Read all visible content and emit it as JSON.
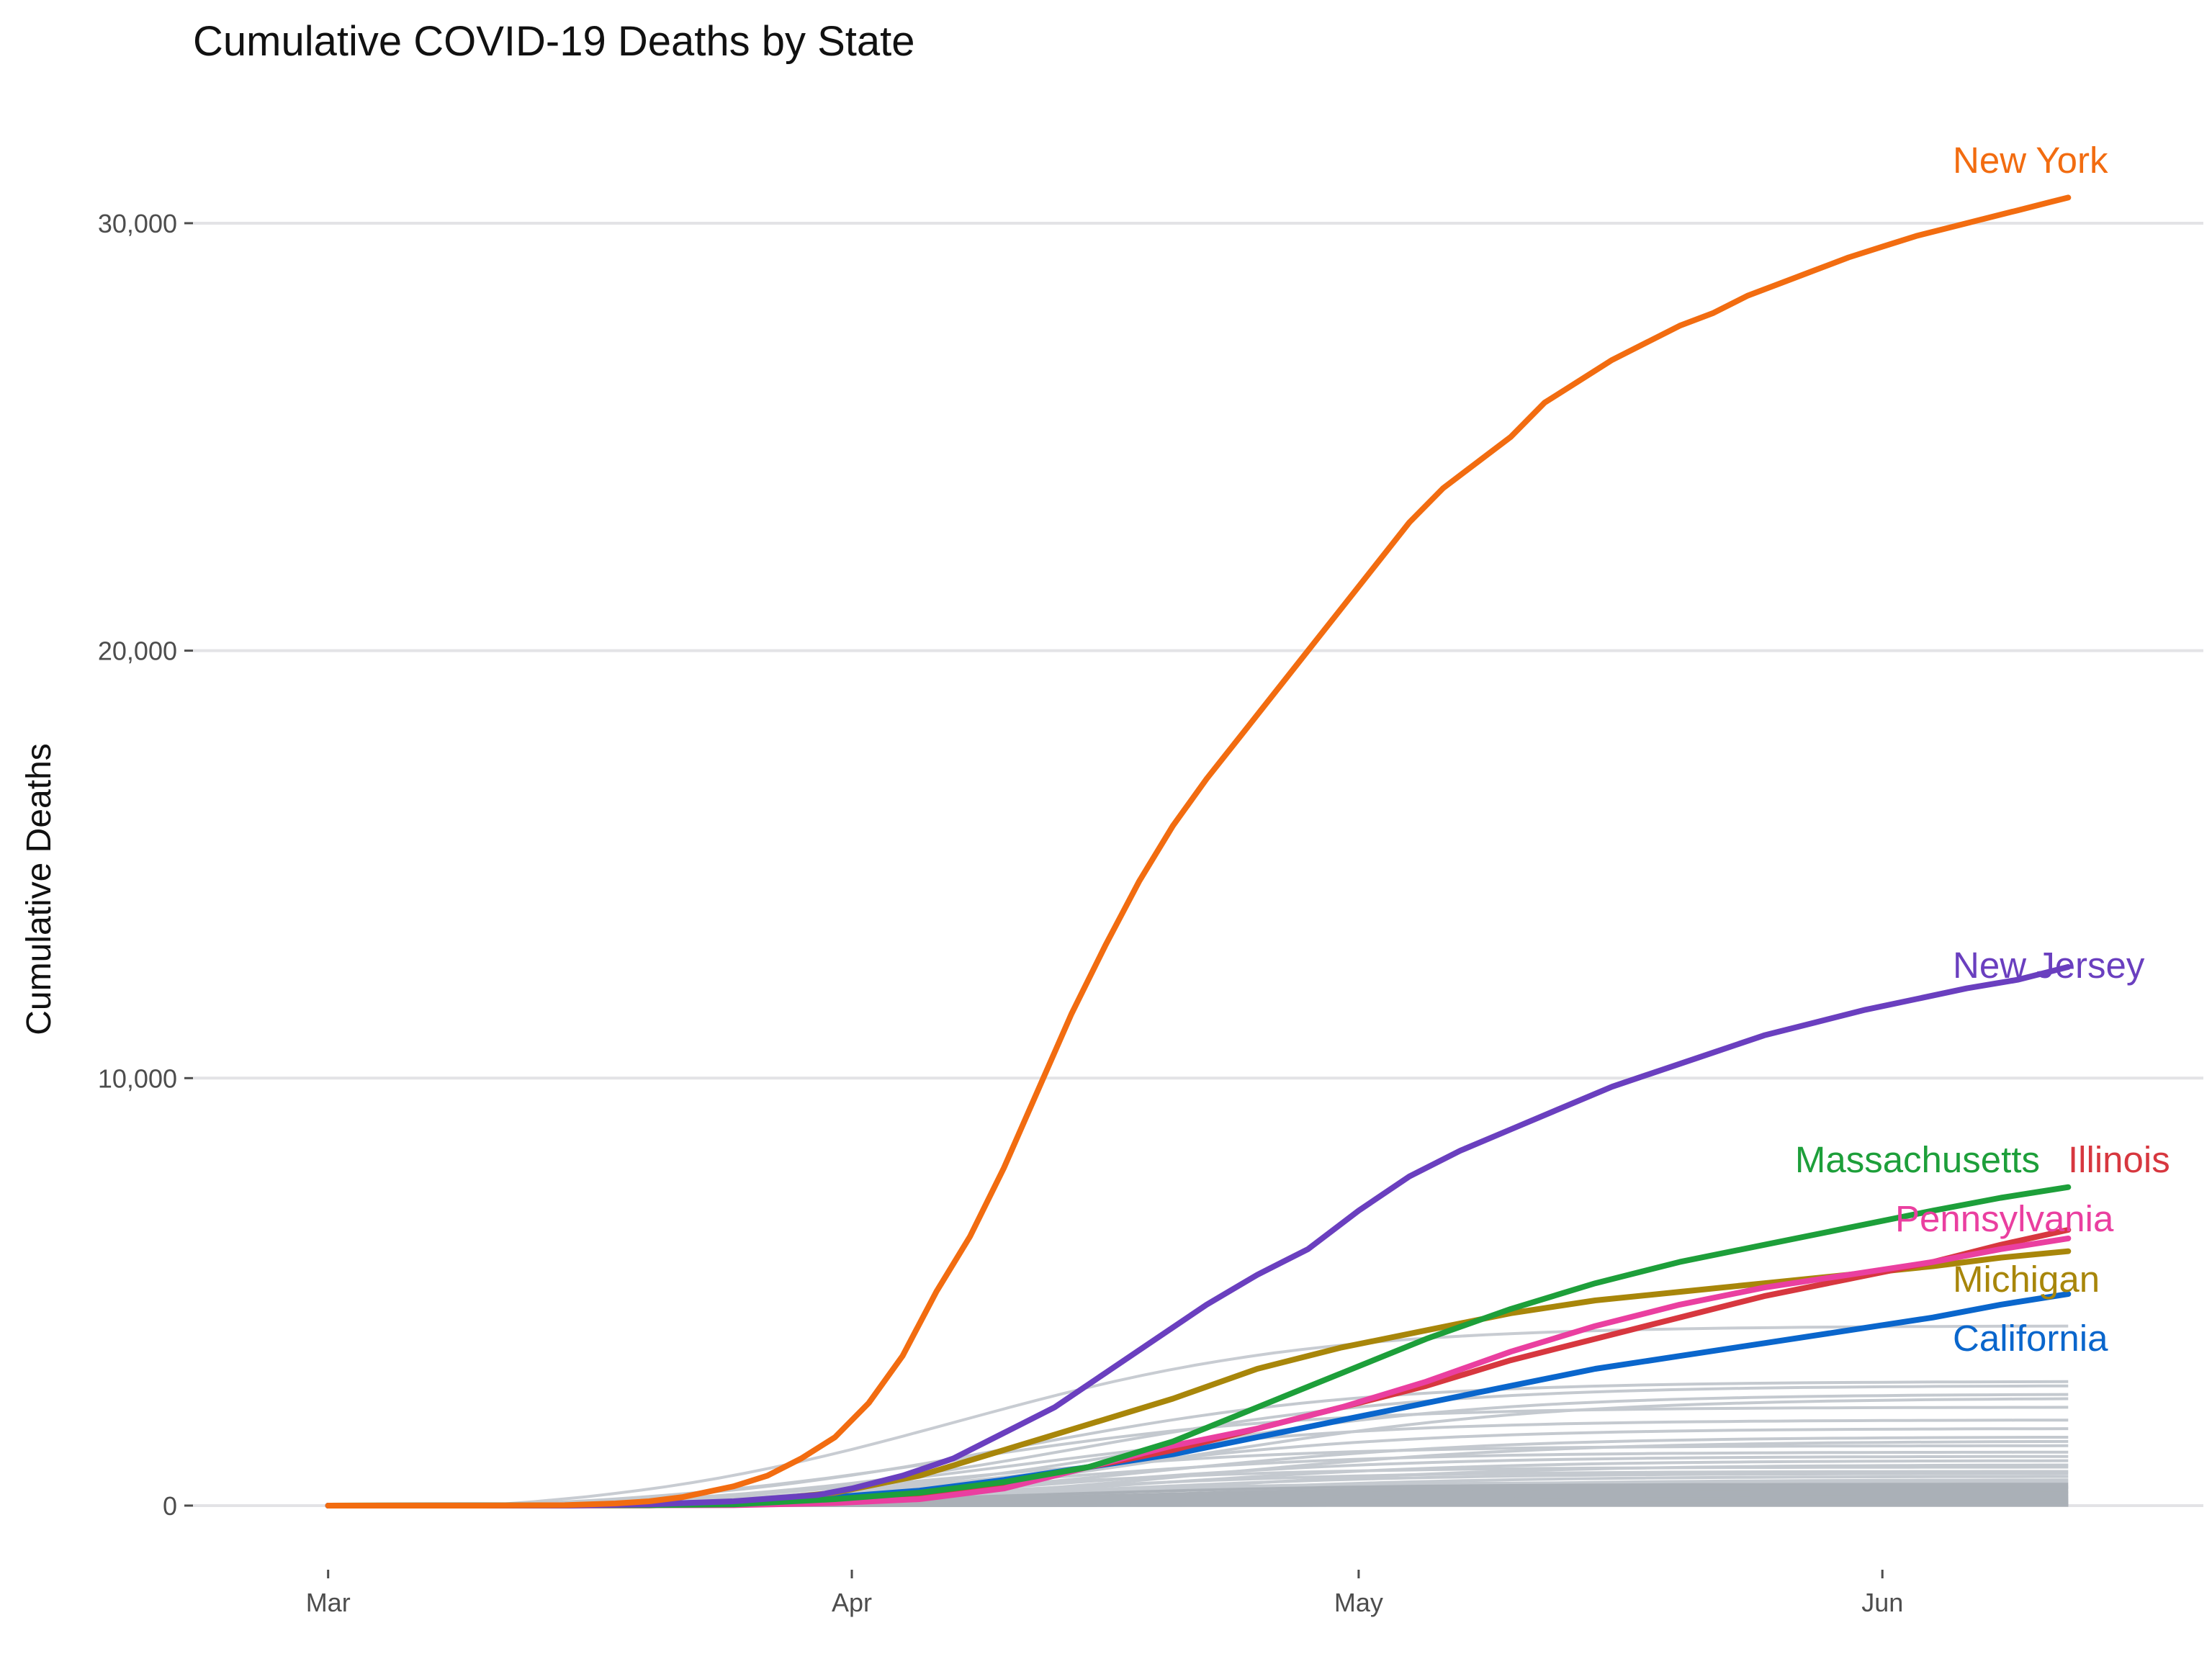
{
  "chart_data": {
    "type": "line",
    "title": "Cumulative COVID-19 Deaths by State",
    "xlabel": "",
    "ylabel": "Cumulative Deaths",
    "x_axis": {
      "type": "date",
      "range": [
        "2020-02-22",
        "2020-06-20"
      ],
      "ticks": [
        {
          "date": "2020-03-01",
          "label": "Mar"
        },
        {
          "date": "2020-04-01",
          "label": "Apr"
        },
        {
          "date": "2020-05-01",
          "label": "May"
        },
        {
          "date": "2020-06-01",
          "label": "Jun"
        }
      ]
    },
    "y_axis": {
      "range": [
        -1500,
        33200
      ],
      "ticks": [
        {
          "value": 0,
          "label": "0"
        },
        {
          "value": 10000,
          "label": "10,000"
        },
        {
          "value": 20000,
          "label": "20,000"
        },
        {
          "value": 30000,
          "label": "30,000"
        }
      ]
    },
    "grid": true,
    "legend": "none (direct labels at line ends)",
    "highlighted_series": [
      {
        "name": "New York",
        "color": "#f26c10",
        "points": [
          [
            "2020-03-01",
            0
          ],
          [
            "2020-03-10",
            0
          ],
          [
            "2020-03-15",
            10
          ],
          [
            "2020-03-18",
            50
          ],
          [
            "2020-03-20",
            100
          ],
          [
            "2020-03-22",
            200
          ],
          [
            "2020-03-25",
            450
          ],
          [
            "2020-03-27",
            700
          ],
          [
            "2020-03-29",
            1100
          ],
          [
            "2020-03-31",
            1600
          ],
          [
            "2020-04-02",
            2400
          ],
          [
            "2020-04-04",
            3500
          ],
          [
            "2020-04-06",
            5000
          ],
          [
            "2020-04-08",
            6300
          ],
          [
            "2020-04-10",
            7900
          ],
          [
            "2020-04-12",
            9700
          ],
          [
            "2020-04-14",
            11500
          ],
          [
            "2020-04-16",
            13100
          ],
          [
            "2020-04-18",
            14600
          ],
          [
            "2020-04-20",
            15900
          ],
          [
            "2020-04-22",
            17000
          ],
          [
            "2020-04-24",
            18000
          ],
          [
            "2020-04-26",
            19000
          ],
          [
            "2020-04-28",
            20000
          ],
          [
            "2020-04-30",
            21000
          ],
          [
            "2020-05-02",
            22000
          ],
          [
            "2020-05-04",
            23000
          ],
          [
            "2020-05-06",
            23800
          ],
          [
            "2020-05-08",
            24400
          ],
          [
            "2020-05-10",
            25000
          ],
          [
            "2020-05-12",
            25800
          ],
          [
            "2020-05-14",
            26300
          ],
          [
            "2020-05-16",
            26800
          ],
          [
            "2020-05-18",
            27200
          ],
          [
            "2020-05-20",
            27600
          ],
          [
            "2020-05-22",
            27900
          ],
          [
            "2020-05-24",
            28300
          ],
          [
            "2020-05-26",
            28600
          ],
          [
            "2020-05-28",
            28900
          ],
          [
            "2020-05-30",
            29200
          ],
          [
            "2020-06-01",
            29450
          ],
          [
            "2020-06-03",
            29700
          ],
          [
            "2020-06-05",
            29900
          ],
          [
            "2020-06-07",
            30100
          ],
          [
            "2020-06-09",
            30300
          ],
          [
            "2020-06-11",
            30500
          ],
          [
            "2020-06-12",
            30600
          ]
        ]
      },
      {
        "name": "New Jersey",
        "color": "#6a3fbf",
        "points": [
          [
            "2020-03-01",
            0
          ],
          [
            "2020-03-15",
            0
          ],
          [
            "2020-03-20",
            30
          ],
          [
            "2020-03-25",
            100
          ],
          [
            "2020-03-30",
            250
          ],
          [
            "2020-04-01",
            400
          ],
          [
            "2020-04-04",
            700
          ],
          [
            "2020-04-07",
            1100
          ],
          [
            "2020-04-10",
            1700
          ],
          [
            "2020-04-13",
            2300
          ],
          [
            "2020-04-16",
            3100
          ],
          [
            "2020-04-19",
            3900
          ],
          [
            "2020-04-22",
            4700
          ],
          [
            "2020-04-25",
            5400
          ],
          [
            "2020-04-28",
            6000
          ],
          [
            "2020-05-01",
            6900
          ],
          [
            "2020-05-04",
            7700
          ],
          [
            "2020-05-07",
            8300
          ],
          [
            "2020-05-10",
            8800
          ],
          [
            "2020-05-13",
            9300
          ],
          [
            "2020-05-16",
            9800
          ],
          [
            "2020-05-19",
            10200
          ],
          [
            "2020-05-22",
            10600
          ],
          [
            "2020-05-25",
            11000
          ],
          [
            "2020-05-28",
            11300
          ],
          [
            "2020-05-31",
            11600
          ],
          [
            "2020-06-03",
            11850
          ],
          [
            "2020-06-06",
            12100
          ],
          [
            "2020-06-09",
            12300
          ],
          [
            "2020-06-12",
            12600
          ]
        ]
      },
      {
        "name": "Massachusetts",
        "color": "#1d9f3a",
        "points": [
          [
            "2020-03-01",
            0
          ],
          [
            "2020-03-20",
            10
          ],
          [
            "2020-03-25",
            30
          ],
          [
            "2020-03-31",
            150
          ],
          [
            "2020-04-05",
            300
          ],
          [
            "2020-04-10",
            550
          ],
          [
            "2020-04-15",
            900
          ],
          [
            "2020-04-20",
            1500
          ],
          [
            "2020-04-25",
            2300
          ],
          [
            "2020-04-30",
            3100
          ],
          [
            "2020-05-05",
            3900
          ],
          [
            "2020-05-10",
            4600
          ],
          [
            "2020-05-15",
            5200
          ],
          [
            "2020-05-20",
            5700
          ],
          [
            "2020-05-25",
            6100
          ],
          [
            "2020-05-30",
            6500
          ],
          [
            "2020-06-04",
            6900
          ],
          [
            "2020-06-08",
            7200
          ],
          [
            "2020-06-12",
            7450
          ]
        ]
      },
      {
        "name": "Illinois",
        "color": "#d7373f",
        "points": [
          [
            "2020-03-01",
            0
          ],
          [
            "2020-03-20",
            5
          ],
          [
            "2020-03-31",
            100
          ],
          [
            "2020-04-05",
            250
          ],
          [
            "2020-04-10",
            500
          ],
          [
            "2020-04-15",
            900
          ],
          [
            "2020-04-20",
            1300
          ],
          [
            "2020-04-25",
            1800
          ],
          [
            "2020-04-30",
            2300
          ],
          [
            "2020-05-05",
            2800
          ],
          [
            "2020-05-10",
            3400
          ],
          [
            "2020-05-15",
            3900
          ],
          [
            "2020-05-20",
            4400
          ],
          [
            "2020-05-25",
            4900
          ],
          [
            "2020-05-30",
            5300
          ],
          [
            "2020-06-04",
            5700
          ],
          [
            "2020-06-08",
            6100
          ],
          [
            "2020-06-12",
            6450
          ]
        ]
      },
      {
        "name": "Pennsylvania",
        "color": "#ea3fa0",
        "points": [
          [
            "2020-03-01",
            0
          ],
          [
            "2020-03-25",
            10
          ],
          [
            "2020-03-31",
            60
          ],
          [
            "2020-04-05",
            150
          ],
          [
            "2020-04-10",
            400
          ],
          [
            "2020-04-15",
            900
          ],
          [
            "2020-04-20",
            1400
          ],
          [
            "2020-04-25",
            1800
          ],
          [
            "2020-04-30",
            2300
          ],
          [
            "2020-05-05",
            2900
          ],
          [
            "2020-05-10",
            3600
          ],
          [
            "2020-05-15",
            4200
          ],
          [
            "2020-05-20",
            4700
          ],
          [
            "2020-05-25",
            5100
          ],
          [
            "2020-05-30",
            5400
          ],
          [
            "2020-06-04",
            5700
          ],
          [
            "2020-06-08",
            6000
          ],
          [
            "2020-06-12",
            6250
          ]
        ]
      },
      {
        "name": "Michigan",
        "color": "#a8860a",
        "points": [
          [
            "2020-03-01",
            0
          ],
          [
            "2020-03-20",
            10
          ],
          [
            "2020-03-25",
            60
          ],
          [
            "2020-03-31",
            300
          ],
          [
            "2020-04-05",
            700
          ],
          [
            "2020-04-10",
            1300
          ],
          [
            "2020-04-15",
            1900
          ],
          [
            "2020-04-20",
            2500
          ],
          [
            "2020-04-25",
            3200
          ],
          [
            "2020-04-30",
            3700
          ],
          [
            "2020-05-05",
            4100
          ],
          [
            "2020-05-10",
            4500
          ],
          [
            "2020-05-15",
            4800
          ],
          [
            "2020-05-20",
            5000
          ],
          [
            "2020-05-25",
            5200
          ],
          [
            "2020-05-30",
            5400
          ],
          [
            "2020-06-04",
            5600
          ],
          [
            "2020-06-08",
            5800
          ],
          [
            "2020-06-12",
            5950
          ]
        ]
      },
      {
        "name": "California",
        "color": "#0a66cc",
        "points": [
          [
            "2020-03-01",
            0
          ],
          [
            "2020-03-15",
            5
          ],
          [
            "2020-03-25",
            80
          ],
          [
            "2020-03-31",
            200
          ],
          [
            "2020-04-05",
            350
          ],
          [
            "2020-04-10",
            600
          ],
          [
            "2020-04-15",
            900
          ],
          [
            "2020-04-20",
            1200
          ],
          [
            "2020-04-25",
            1600
          ],
          [
            "2020-04-30",
            2000
          ],
          [
            "2020-05-05",
            2400
          ],
          [
            "2020-05-10",
            2800
          ],
          [
            "2020-05-15",
            3200
          ],
          [
            "2020-05-20",
            3500
          ],
          [
            "2020-05-25",
            3800
          ],
          [
            "2020-05-30",
            4100
          ],
          [
            "2020-06-04",
            4400
          ],
          [
            "2020-06-08",
            4700
          ],
          [
            "2020-06-12",
            4950
          ]
        ]
      }
    ],
    "other_states": {
      "color": "#c4c9cf",
      "start_date": "2020-03-10",
      "end_date": "2020-06-12",
      "final_values": [
        4200,
        2900,
        2800,
        2600,
        2500,
        2300,
        2000,
        1800,
        1600,
        1500,
        1400,
        1250,
        1150,
        1050,
        950,
        900,
        800,
        750,
        680,
        600,
        550,
        500,
        450,
        420,
        380,
        330,
        300,
        260,
        220,
        190,
        160,
        130,
        110,
        90,
        70,
        55,
        40,
        30,
        20,
        15,
        10,
        6
      ]
    }
  }
}
